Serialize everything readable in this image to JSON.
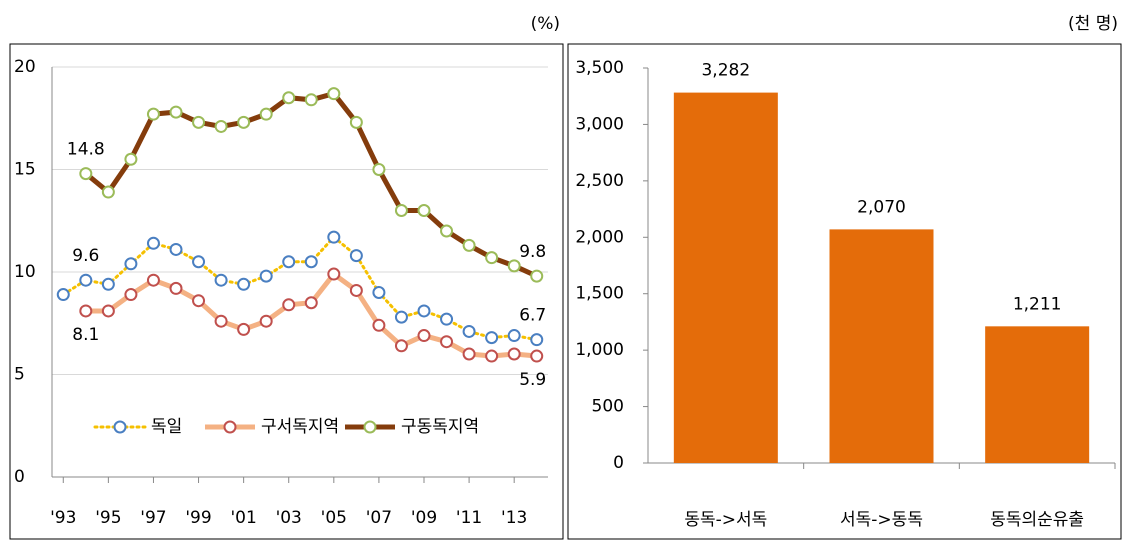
{
  "chart_data": [
    {
      "type": "line",
      "unit": "(%)",
      "x": [
        1993,
        1994,
        1995,
        1996,
        1997,
        1998,
        1999,
        2000,
        2001,
        2002,
        2003,
        2004,
        2005,
        2006,
        2007,
        2008,
        2009,
        2010,
        2011,
        2012,
        2013,
        2014
      ],
      "series": [
        {
          "name": "독일",
          "color": "#f5c000",
          "marker_color": "#4a7fc1",
          "line_style": "dotted",
          "values": [
            8.9,
            9.6,
            9.4,
            10.4,
            11.4,
            11.1,
            10.5,
            9.6,
            9.4,
            9.8,
            10.5,
            10.5,
            11.7,
            10.8,
            9.0,
            7.8,
            8.1,
            7.7,
            7.1,
            6.8,
            6.9,
            6.7
          ],
          "value_labels": [
            null,
            "9.6",
            null,
            null,
            null,
            null,
            null,
            null,
            null,
            null,
            null,
            null,
            null,
            null,
            null,
            null,
            null,
            null,
            null,
            null,
            null,
            "6.7"
          ]
        },
        {
          "name": "구서독지역",
          "color": "#f4b183",
          "marker_color": "#c0504d",
          "line_style": "solid",
          "values": [
            null,
            8.1,
            8.1,
            8.9,
            9.6,
            9.2,
            8.6,
            7.6,
            7.2,
            7.6,
            8.4,
            8.5,
            9.9,
            9.1,
            7.4,
            6.4,
            6.9,
            6.6,
            6.0,
            5.9,
            6.0,
            5.9
          ],
          "value_labels": [
            null,
            "8.1",
            null,
            null,
            null,
            null,
            null,
            null,
            null,
            null,
            null,
            null,
            null,
            null,
            null,
            null,
            null,
            null,
            null,
            null,
            null,
            "5.9"
          ]
        },
        {
          "name": "구동독지역",
          "color": "#843c0c",
          "marker_color": "#9bbb59",
          "line_style": "solid",
          "values": [
            null,
            14.8,
            13.9,
            15.5,
            17.7,
            17.8,
            17.3,
            17.1,
            17.3,
            17.7,
            18.5,
            18.4,
            18.7,
            17.3,
            15.0,
            13.0,
            13.0,
            12.0,
            11.3,
            10.7,
            10.3,
            9.8
          ],
          "value_labels": [
            null,
            "14.8",
            null,
            null,
            null,
            null,
            null,
            null,
            null,
            null,
            null,
            null,
            null,
            null,
            null,
            null,
            null,
            null,
            null,
            null,
            null,
            "9.8"
          ]
        }
      ],
      "xlim": [
        1992.5,
        2014.5
      ],
      "xticks": [
        {
          "value": 1993,
          "label": "'93"
        },
        {
          "value": 1995,
          "label": "'95"
        },
        {
          "value": 1997,
          "label": "'97"
        },
        {
          "value": 1999,
          "label": "'99"
        },
        {
          "value": 2001,
          "label": "'01"
        },
        {
          "value": 2003,
          "label": "'03"
        },
        {
          "value": 2005,
          "label": "'05"
        },
        {
          "value": 2007,
          "label": "'07"
        },
        {
          "value": 2009,
          "label": "'09"
        },
        {
          "value": 2011,
          "label": "'11"
        },
        {
          "value": 2013,
          "label": "'13"
        }
      ],
      "ylim": [
        0,
        20
      ],
      "yticks": [
        0,
        5,
        10,
        15,
        20
      ],
      "grid": true,
      "legend": "bottom"
    },
    {
      "type": "bar",
      "unit": "(천 명)",
      "categories": [
        "동독->서독",
        "서독->동독",
        "동독의순유출"
      ],
      "values": [
        3282,
        2070,
        1211
      ],
      "value_labels": [
        "3,282",
        "2,070",
        "1,211"
      ],
      "color": "#e46c0a",
      "ylim": [
        0,
        3500
      ],
      "yticks": [
        0,
        500,
        {
          "value": 1000,
          "label": "1,000"
        },
        {
          "value": 1500,
          "label": "1,500"
        },
        {
          "value": 2000,
          "label": "2,000"
        },
        {
          "value": 2500,
          "label": "2,500"
        },
        {
          "value": 3000,
          "label": "3,000"
        },
        {
          "value": 3500,
          "label": "3,500"
        }
      ],
      "grid": false
    }
  ]
}
